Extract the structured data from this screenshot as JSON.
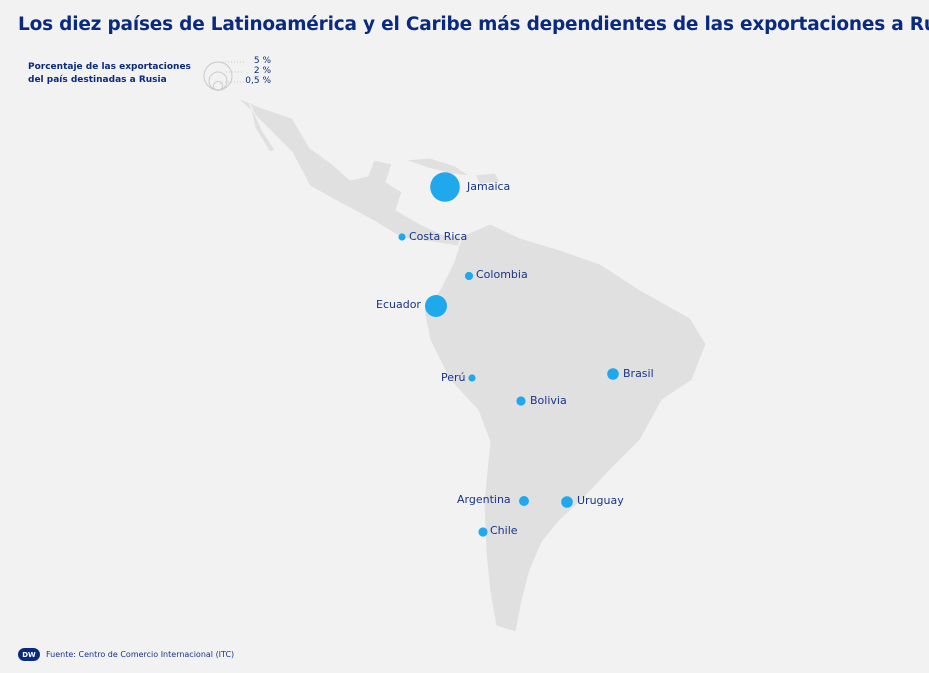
{
  "title": "Los diez países de Latinoamérica y el Caribe más dependientes de las exportaciones a Rusia",
  "legend": {
    "title": "Porcentaje de las exportaciones del país destinadas a Rusia",
    "sizes": [
      "5 %",
      "2 %",
      "0,5 %"
    ]
  },
  "colors": {
    "bubble": "#1fa9ec",
    "land": "#e1e0e1",
    "background": "#f3f2f3",
    "text": "#0a2a80"
  },
  "countries": [
    {
      "name": "Jamaica",
      "pct": 5.2
    },
    {
      "name": "Ecuador",
      "pct": 2.9
    },
    {
      "name": "Brasil",
      "pct": 0.8
    },
    {
      "name": "Uruguay",
      "pct": 0.8
    },
    {
      "name": "Argentina",
      "pct": 0.6
    },
    {
      "name": "Bolivia",
      "pct": 0.5
    },
    {
      "name": "Chile",
      "pct": 0.5
    },
    {
      "name": "Colombia",
      "pct": 0.4
    },
    {
      "name": "Costa Rica",
      "pct": 0.3
    },
    {
      "name": "Perú",
      "pct": 0.3
    }
  ],
  "footer": {
    "logo": "DW",
    "source": "Fuente: Centro de Comercio Internacional (ITC)"
  }
}
